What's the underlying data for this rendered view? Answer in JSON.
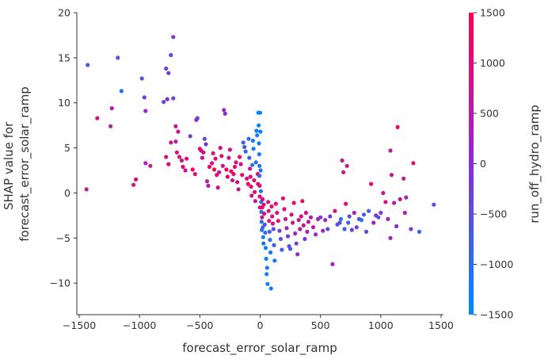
{
  "chart_data": {
    "type": "scatter",
    "title": "",
    "xlabel": "forecast_error_solar_ramp",
    "ylabel_lines": [
      "SHAP value for",
      "forecast_error_solar_ramp"
    ],
    "xlim": [
      -1520,
      1520
    ],
    "ylim": [
      -13.5,
      20
    ],
    "xticks": [
      -1500,
      -1000,
      -500,
      0,
      500,
      1000,
      1500
    ],
    "yticks": [
      -10,
      -5,
      0,
      5,
      10,
      15,
      20
    ],
    "colorbar": {
      "label": "run_off_hydro_ramp",
      "range": [
        -1500,
        1500
      ],
      "ticks": [
        -1500,
        -1000,
        -500,
        0,
        500,
        1000,
        1500
      ],
      "low_color": "#008afb",
      "mid_color": "#8a2ed0",
      "high_color": "#ff0052"
    },
    "grid": false,
    "points": [
      [
        -1430,
        14.2,
        -700
      ],
      [
        -1440,
        0.4,
        600
      ],
      [
        -1350,
        8.3,
        900
      ],
      [
        -1230,
        9.4,
        500
      ],
      [
        -1240,
        7.4,
        400
      ],
      [
        -1180,
        15.0,
        -600
      ],
      [
        -1150,
        11.3,
        -1100
      ],
      [
        -1050,
        0.9,
        1000
      ],
      [
        -1030,
        1.5,
        1200
      ],
      [
        -980,
        12.7,
        -700
      ],
      [
        -960,
        10.6,
        -300
      ],
      [
        -950,
        9.1,
        300
      ],
      [
        -950,
        3.3,
        400
      ],
      [
        -910,
        3.0,
        600
      ],
      [
        -800,
        10.1,
        -500
      ],
      [
        -780,
        13.8,
        -500
      ],
      [
        -760,
        13.3,
        -200
      ],
      [
        -770,
        10.4,
        200
      ],
      [
        -740,
        15.3,
        -300
      ],
      [
        -720,
        10.5,
        -400
      ],
      [
        -720,
        17.3,
        -100
      ],
      [
        -700,
        7.4,
        800
      ],
      [
        -680,
        6.8,
        900
      ],
      [
        -740,
        5.6,
        700
      ],
      [
        -700,
        5.7,
        500
      ],
      [
        -780,
        4.0,
        1000
      ],
      [
        -760,
        3.2,
        1100
      ],
      [
        -690,
        4.5,
        900
      ],
      [
        -670,
        4.0,
        1000
      ],
      [
        -650,
        3.6,
        800
      ],
      [
        -640,
        2.9,
        1200
      ],
      [
        -620,
        2.5,
        700
      ],
      [
        -610,
        3.8,
        1100
      ],
      [
        -580,
        6.3,
        -200
      ],
      [
        -560,
        2.6,
        1300
      ],
      [
        -540,
        2.1,
        1000
      ],
      [
        -530,
        8.1,
        300
      ],
      [
        -520,
        8.3,
        -300
      ],
      [
        -500,
        4.9,
        1200
      ],
      [
        -490,
        4.7,
        1100
      ],
      [
        -480,
        3.9,
        900
      ],
      [
        -470,
        4.5,
        800
      ],
      [
        -460,
        6.0,
        -400
      ],
      [
        -450,
        5.4,
        -200
      ],
      [
        -440,
        1.3,
        500
      ],
      [
        -430,
        0.8,
        600
      ],
      [
        -420,
        2.9,
        1300
      ],
      [
        -400,
        3.3,
        1000
      ],
      [
        -390,
        4.4,
        900
      ],
      [
        -380,
        2.6,
        1400
      ],
      [
        -370,
        3.8,
        1100
      ],
      [
        -360,
        2.0,
        1200
      ],
      [
        -350,
        0.6,
        800
      ],
      [
        -340,
        2.3,
        700
      ],
      [
        -330,
        5.0,
        1000
      ],
      [
        -320,
        4.1,
        1100
      ],
      [
        -310,
        3.0,
        900
      ],
      [
        -300,
        9.2,
        200
      ],
      [
        -290,
        8.8,
        -100
      ],
      [
        -280,
        2.6,
        1300
      ],
      [
        -270,
        1.8,
        1200
      ],
      [
        -260,
        3.9,
        800
      ],
      [
        -250,
        4.8,
        1000
      ],
      [
        -240,
        2.4,
        1400
      ],
      [
        -230,
        1.4,
        600
      ],
      [
        -220,
        2.1,
        1100
      ],
      [
        -210,
        2.9,
        1200
      ],
      [
        -200,
        3.4,
        900
      ],
      [
        -190,
        1.2,
        1000
      ],
      [
        -180,
        0.4,
        700
      ],
      [
        -170,
        4.0,
        1300
      ],
      [
        -160,
        3.2,
        1000
      ],
      [
        -150,
        2.0,
        1200
      ],
      [
        -140,
        5.6,
        -800
      ],
      [
        -130,
        5.1,
        -600
      ],
      [
        -120,
        4.6,
        -900
      ],
      [
        -110,
        1.6,
        1100
      ],
      [
        -100,
        1.0,
        1300
      ],
      [
        -95,
        6.0,
        -1000
      ],
      [
        -90,
        3.9,
        -900
      ],
      [
        -85,
        2.7,
        900
      ],
      [
        -80,
        1.8,
        1000
      ],
      [
        -75,
        0.7,
        1200
      ],
      [
        -70,
        -0.3,
        800
      ],
      [
        -65,
        3.1,
        -1100
      ],
      [
        -60,
        5.8,
        -1200
      ],
      [
        -55,
        4.9,
        -1300
      ],
      [
        -50,
        1.4,
        900
      ],
      [
        -45,
        0.1,
        1100
      ],
      [
        -40,
        -0.9,
        700
      ],
      [
        -35,
        3.4,
        -1000
      ],
      [
        -30,
        6.9,
        -1300
      ],
      [
        -25,
        6.4,
        -1200
      ],
      [
        -20,
        2.1,
        1200
      ],
      [
        -18,
        1.0,
        1000
      ],
      [
        -15,
        8.9,
        -1400
      ],
      [
        -12,
        7.5,
        -1300
      ],
      [
        -10,
        5.5,
        -1300
      ],
      [
        -8,
        4.3,
        -1200
      ],
      [
        -6,
        3.0,
        -1100
      ],
      [
        -5,
        1.9,
        -1000
      ],
      [
        -4,
        0.8,
        900
      ],
      [
        -3,
        -0.4,
        1000
      ],
      [
        -2,
        -1.6,
        700
      ],
      [
        0,
        8.9,
        -1400
      ],
      [
        2,
        6.8,
        -1300
      ],
      [
        4,
        2.5,
        -1200
      ],
      [
        6,
        0.2,
        -1100
      ],
      [
        8,
        -1.0,
        -1200
      ],
      [
        10,
        -2.1,
        -1000
      ],
      [
        12,
        -3.2,
        -1100
      ],
      [
        14,
        -4.1,
        -1200
      ],
      [
        16,
        -2.7,
        900
      ],
      [
        18,
        -1.6,
        1100
      ],
      [
        20,
        -0.7,
        1200
      ],
      [
        22,
        -3.8,
        -900
      ],
      [
        25,
        -4.9,
        -1300
      ],
      [
        28,
        -5.6,
        -1200
      ],
      [
        30,
        -1.3,
        1000
      ],
      [
        34,
        -2.3,
        800
      ],
      [
        38,
        -3.5,
        -600
      ],
      [
        42,
        -4.4,
        -1000
      ],
      [
        46,
        -6.1,
        -1300
      ],
      [
        50,
        -7.3,
        -1400
      ],
      [
        54,
        -9.0,
        -1300
      ],
      [
        58,
        -8.3,
        -1200
      ],
      [
        62,
        -10.1,
        -1400
      ],
      [
        66,
        -1.0,
        1100
      ],
      [
        70,
        -2.0,
        900
      ],
      [
        74,
        -3.1,
        1000
      ],
      [
        78,
        -4.3,
        -800
      ],
      [
        82,
        -5.2,
        -1100
      ],
      [
        86,
        -6.6,
        -1200
      ],
      [
        90,
        -10.6,
        -1300
      ],
      [
        95,
        -1.5,
        1200
      ],
      [
        100,
        -2.6,
        1000
      ],
      [
        105,
        -3.4,
        700
      ],
      [
        110,
        -4.0,
        -500
      ],
      [
        115,
        -5.8,
        -700
      ],
      [
        120,
        -7.5,
        -1200
      ],
      [
        130,
        -1.2,
        1100
      ],
      [
        140,
        -2.2,
        900
      ],
      [
        150,
        -3.1,
        1200
      ],
      [
        160,
        -4.2,
        -300
      ],
      [
        170,
        -5.1,
        -600
      ],
      [
        180,
        -6.3,
        -800
      ],
      [
        190,
        -0.6,
        1300
      ],
      [
        200,
        -1.8,
        1000
      ],
      [
        210,
        -2.9,
        800
      ],
      [
        220,
        -3.9,
        500
      ],
      [
        230,
        -4.8,
        -200
      ],
      [
        240,
        -5.9,
        -500
      ],
      [
        250,
        -6.2,
        -700
      ],
      [
        260,
        -2.4,
        1000
      ],
      [
        270,
        -3.3,
        700
      ],
      [
        280,
        -1.1,
        1200
      ],
      [
        290,
        -4.5,
        400
      ],
      [
        300,
        -5.6,
        -300
      ],
      [
        310,
        -6.8,
        200
      ],
      [
        320,
        -3.0,
        600
      ],
      [
        330,
        -4.0,
        500
      ],
      [
        340,
        -2.6,
        900
      ],
      [
        350,
        -0.9,
        1300
      ],
      [
        360,
        -3.6,
        700
      ],
      [
        370,
        -5.1,
        -200
      ],
      [
        380,
        -2.2,
        1000
      ],
      [
        390,
        -4.3,
        300
      ],
      [
        400,
        -3.2,
        800
      ],
      [
        420,
        -2.7,
        500
      ],
      [
        440,
        -3.8,
        600
      ],
      [
        460,
        -4.6,
        200
      ],
      [
        480,
        -2.9,
        400
      ],
      [
        500,
        -2.7,
        -200
      ],
      [
        520,
        -4.2,
        300
      ],
      [
        540,
        -3.0,
        100
      ],
      [
        560,
        -4.0,
        -500
      ],
      [
        580,
        -2.6,
        -300
      ],
      [
        600,
        -7.9,
        300
      ],
      [
        620,
        -2.0,
        1000
      ],
      [
        640,
        -3.5,
        -600
      ],
      [
        660,
        -3.3,
        -400
      ],
      [
        670,
        -2.9,
        -1000
      ],
      [
        680,
        3.6,
        700
      ],
      [
        690,
        2.3,
        900
      ],
      [
        700,
        -4.0,
        -800
      ],
      [
        710,
        -1.2,
        1100
      ],
      [
        720,
        3.0,
        800
      ],
      [
        730,
        -3.3,
        -700
      ],
      [
        740,
        -2.6,
        -500
      ],
      [
        760,
        -4.1,
        -300
      ],
      [
        780,
        -2.2,
        300
      ],
      [
        800,
        -3.8,
        -200
      ],
      [
        820,
        -2.9,
        -600
      ],
      [
        840,
        -3.0,
        -1000
      ],
      [
        860,
        -2.4,
        -700
      ],
      [
        880,
        -4.3,
        -400
      ],
      [
        900,
        -2.0,
        -800
      ],
      [
        920,
        1.0,
        1200
      ],
      [
        940,
        -3.3,
        400
      ],
      [
        960,
        -2.5,
        -100
      ],
      [
        980,
        -2.7,
        -500
      ],
      [
        1000,
        -2.2,
        -300
      ],
      [
        1020,
        0.0,
        800
      ],
      [
        1040,
        -1.0,
        1000
      ],
      [
        1060,
        -2.9,
        300
      ],
      [
        1080,
        4.7,
        600
      ],
      [
        1080,
        -5.0,
        300
      ],
      [
        1090,
        2.0,
        800
      ],
      [
        1110,
        -1.1,
        500
      ],
      [
        1130,
        -3.7,
        -100
      ],
      [
        1140,
        7.3,
        1200
      ],
      [
        1160,
        -0.7,
        900
      ],
      [
        1190,
        1.6,
        700
      ],
      [
        1200,
        -2.2,
        400
      ],
      [
        1210,
        -0.5,
        200
      ],
      [
        1250,
        -4.0,
        -200
      ],
      [
        1270,
        3.3,
        1000
      ],
      [
        1320,
        -4.3,
        -800
      ],
      [
        1440,
        -1.3,
        -400
      ]
    ]
  }
}
